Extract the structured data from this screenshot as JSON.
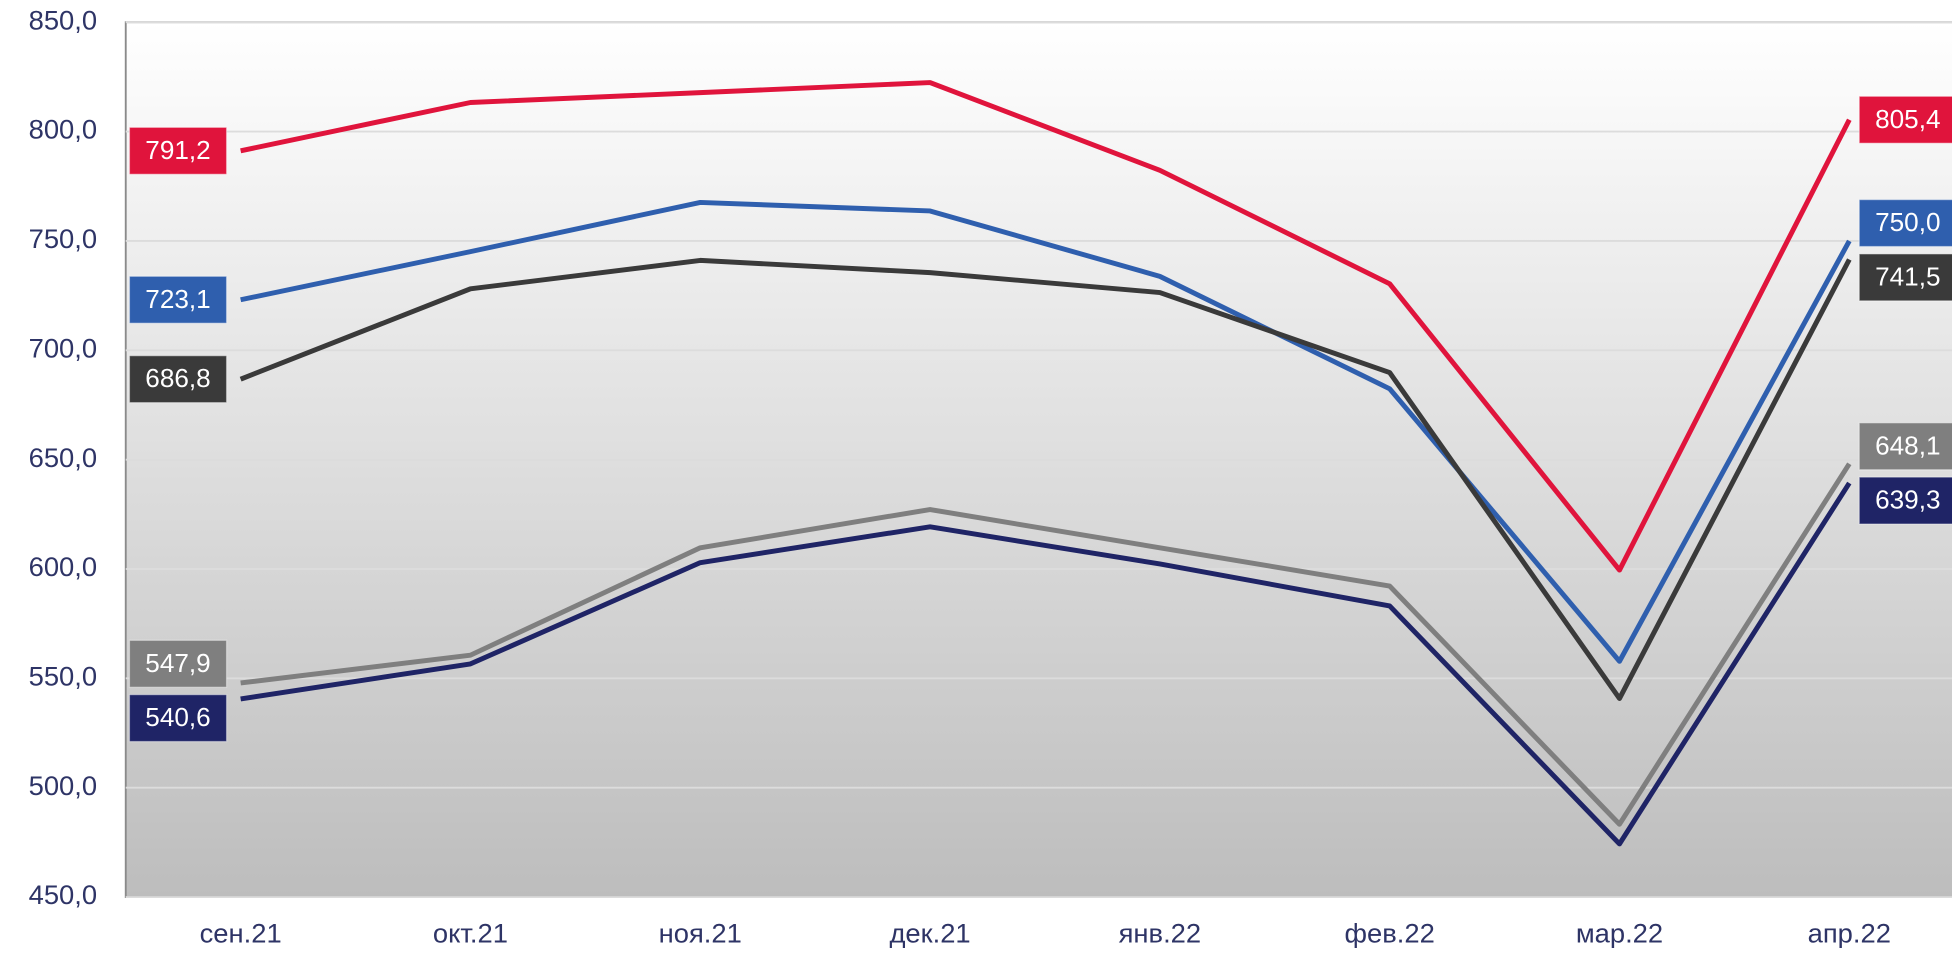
{
  "chart_data": {
    "type": "line",
    "categories": [
      "сен.21",
      "окт.21",
      "ноя.21",
      "дек.21",
      "янв.22",
      "фев.22",
      "мар.22",
      "апр.22"
    ],
    "series": [
      {
        "color": "#e0143c",
        "values": [
          791.2,
          813.3,
          817.8,
          822.4,
          782.3,
          730.4,
          599.5,
          805.4
        ],
        "value_labels": [
          "791,2",
          null,
          null,
          null,
          null,
          null,
          null,
          "805,4"
        ]
      },
      {
        "color": "#2f5fae",
        "values": [
          723.1,
          745.1,
          767.6,
          763.7,
          733.8,
          682.4,
          557.8,
          750.0
        ],
        "value_labels": [
          "723,1",
          null,
          null,
          null,
          null,
          null,
          null,
          "750,0"
        ]
      },
      {
        "color": "#3a3a3a",
        "values": [
          686.8,
          728.1,
          741.1,
          735.5,
          726.4,
          689.8,
          540.8,
          741.5
        ],
        "value_labels": [
          "686,8",
          null,
          null,
          null,
          null,
          null,
          null,
          "741,5"
        ]
      },
      {
        "color": "#7f7f7f",
        "values": [
          547.9,
          560.6,
          609.7,
          627.2,
          609.7,
          592.2,
          483.3,
          648.1
        ],
        "value_labels": [
          "547,9",
          null,
          null,
          null,
          null,
          null,
          null,
          "648,1"
        ]
      },
      {
        "color": "#1f2466",
        "values": [
          540.6,
          556.6,
          602.9,
          619.3,
          602.3,
          583.1,
          474.3,
          639.3
        ],
        "value_labels": [
          "540,6",
          null,
          null,
          null,
          null,
          null,
          null,
          "639,3"
        ]
      }
    ],
    "ylim": [
      450,
      850
    ],
    "yticks": [
      {
        "value": 450,
        "label": "450,0"
      },
      {
        "value": 500,
        "label": "500,0"
      },
      {
        "value": 550,
        "label": "550,0"
      },
      {
        "value": 600,
        "label": "600,0"
      },
      {
        "value": 650,
        "label": "650,0"
      },
      {
        "value": 700,
        "label": "700,0"
      },
      {
        "value": 750,
        "label": "750,0"
      },
      {
        "value": 800,
        "label": "800,0"
      },
      {
        "value": 850,
        "label": "850,0"
      }
    ],
    "grid": true
  }
}
